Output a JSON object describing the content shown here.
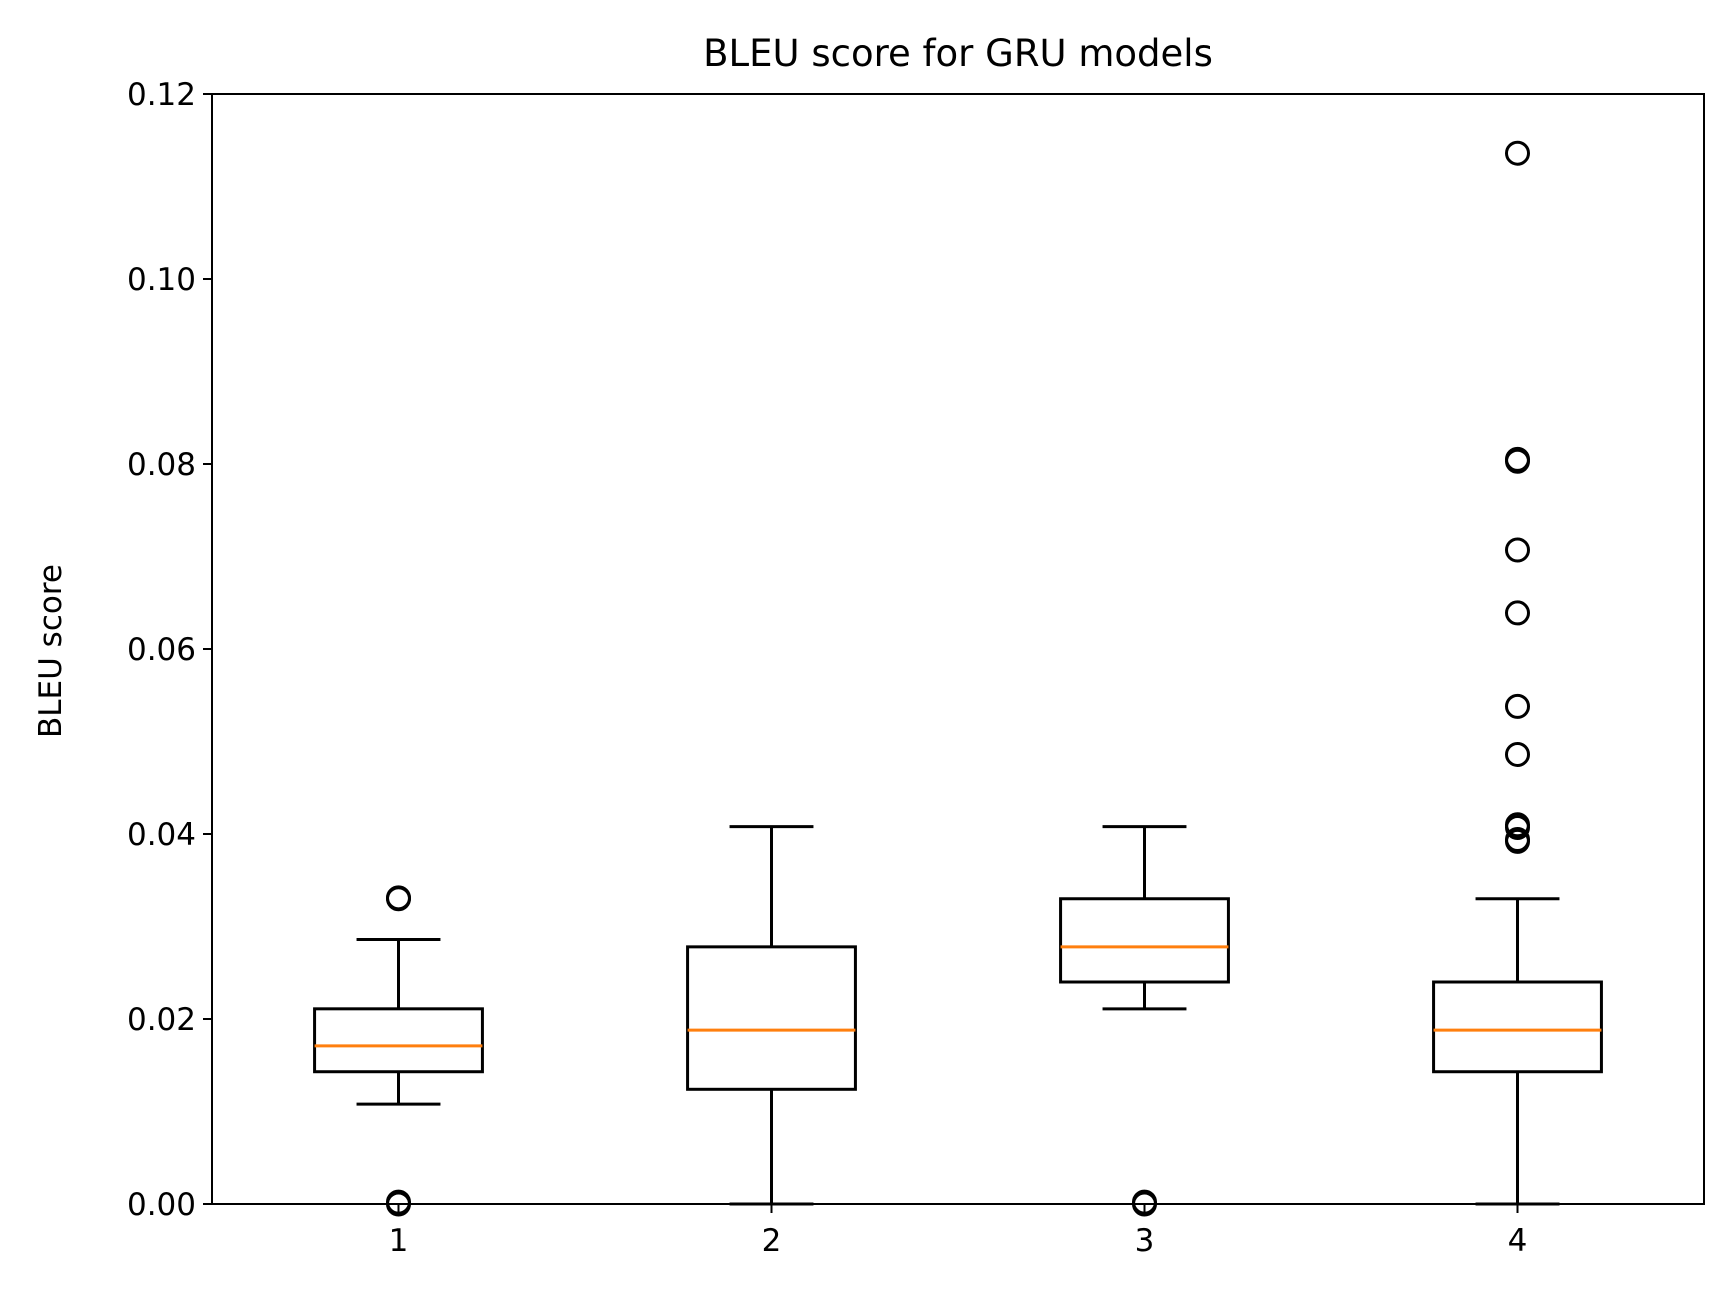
{
  "chart_data": {
    "type": "box",
    "title": "BLEU score for GRU models",
    "xlabel": "",
    "ylabel": "BLEU score",
    "categories": [
      "1",
      "2",
      "3",
      "4"
    ],
    "ylim": [
      0,
      0.12
    ],
    "yticks": [
      0.0,
      0.02,
      0.04,
      0.06,
      0.08,
      0.1,
      0.12
    ],
    "ytick_labels": [
      "0.00",
      "0.02",
      "0.04",
      "0.06",
      "0.08",
      "0.10",
      "0.12"
    ],
    "grid": false,
    "colors": {
      "box": "#000000",
      "median": "#ff7f0e",
      "outlier": "#000000"
    },
    "boxes": [
      {
        "category": "1",
        "whisker_low": 0.0108,
        "q1": 0.0143,
        "median": 0.0171,
        "q3": 0.0211,
        "whisker_high": 0.0286,
        "outliers": [
          0.033,
          0.0331,
          0.0,
          0.0002
        ]
      },
      {
        "category": "2",
        "whisker_low": 0.0,
        "q1": 0.0124,
        "median": 0.0188,
        "q3": 0.0278,
        "whisker_high": 0.0408,
        "outliers": []
      },
      {
        "category": "3",
        "whisker_low": 0.0211,
        "q1": 0.024,
        "median": 0.0278,
        "q3": 0.033,
        "whisker_high": 0.0408,
        "outliers": [
          0.0,
          0.0002
        ]
      },
      {
        "category": "4",
        "whisker_low": 0.0,
        "q1": 0.0143,
        "median": 0.0188,
        "q3": 0.024,
        "whisker_high": 0.033,
        "outliers": [
          0.1136,
          0.0805,
          0.0803,
          0.0707,
          0.0639,
          0.0538,
          0.0486,
          0.041,
          0.0407,
          0.0392,
          0.0394
        ]
      }
    ]
  }
}
